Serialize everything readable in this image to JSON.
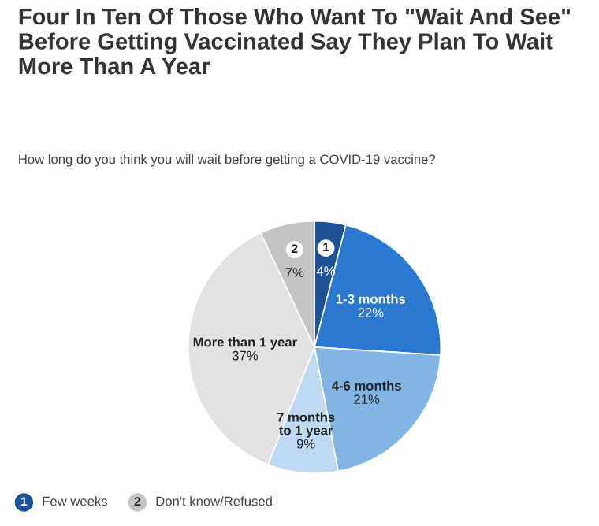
{
  "chart_data": {
    "type": "pie",
    "title": "Four In Ten Of Those Who Want To \"Wait And See\" Before Getting Vaccinated Say They Plan To Wait More Than A Year",
    "subtitle": "How long do you think you will wait before getting a COVID-19 vaccine?",
    "categories": [
      "Few weeks",
      "1-3 months",
      "4-6 months",
      "7 months to 1 year",
      "More than 1 year",
      "Don't know/Refused"
    ],
    "values": [
      4,
      22,
      21,
      9,
      37,
      7
    ],
    "colors": [
      "#1d5296",
      "#2a78d0",
      "#83b5e4",
      "#c0d9f2",
      "#e2e2e2",
      "#c4c4c4"
    ],
    "value_labels": [
      "4%",
      "22%",
      "21%",
      "9%",
      "37%",
      "7%"
    ],
    "annotations": [
      {
        "text": "1",
        "x": "Few weeks"
      },
      {
        "text": "2",
        "x": "Don't know/Refused"
      }
    ],
    "legend": "bottom left"
  }
}
